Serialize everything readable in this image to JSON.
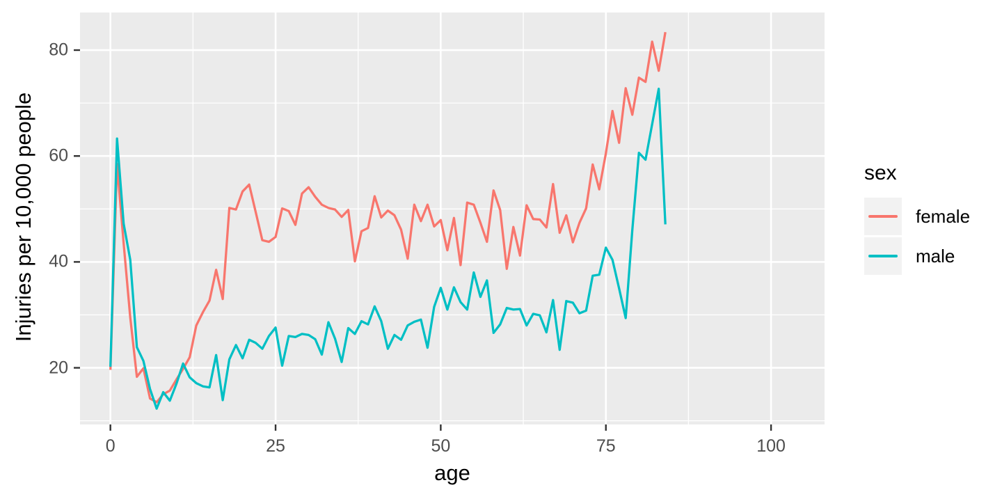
{
  "chart_data": {
    "type": "line",
    "title": "",
    "xlabel": "age",
    "ylabel": "Injuries per 10,000 people",
    "x_ticks": [
      0,
      25,
      50,
      75,
      100
    ],
    "x_minor_ticks": [
      12.5,
      37.5,
      62.5,
      87.5
    ],
    "y_ticks": [
      20,
      40,
      60,
      80
    ],
    "y_minor_ticks": [
      10,
      30,
      50,
      70
    ],
    "xlim": [
      -4.6,
      108.1
    ],
    "ylim": [
      9.3,
      87.1
    ],
    "grid": "major-and-minor",
    "panel_bg": "#ebebeb",
    "grid_color": "#ffffff",
    "tick_color": "#333333",
    "axis_text_color": "#4d4d4d",
    "legend": {
      "title": "sex",
      "position": "right",
      "entries": [
        {
          "label": "female",
          "color": "#F8766D"
        },
        {
          "label": "male",
          "color": "#00BFC4"
        }
      ]
    },
    "x": [
      0,
      1,
      2,
      3,
      4,
      5,
      6,
      7,
      8,
      9,
      10,
      11,
      12,
      13,
      14,
      15,
      16,
      17,
      18,
      19,
      20,
      21,
      22,
      23,
      24,
      25,
      26,
      27,
      28,
      29,
      30,
      31,
      32,
      33,
      34,
      35,
      36,
      37,
      38,
      39,
      40,
      41,
      42,
      43,
      44,
      45,
      46,
      47,
      48,
      49,
      50,
      51,
      52,
      53,
      54,
      55,
      56,
      57,
      58,
      59,
      60,
      61,
      62,
      63,
      64,
      65,
      66,
      67,
      68,
      69,
      70,
      71,
      72,
      73,
      74,
      75,
      76,
      77,
      78,
      79,
      80,
      81,
      82,
      83,
      84
    ],
    "series": [
      {
        "name": "female",
        "color": "#F8766D",
        "values": [
          19.6,
          58.5,
          43.5,
          29.5,
          18.3,
          19.9,
          14.2,
          13.5,
          15.0,
          15.7,
          17.8,
          19.8,
          22.0,
          28.0,
          30.5,
          32.7,
          38.5,
          33.0,
          50.2,
          49.9,
          53.3,
          54.6,
          49.4,
          44.1,
          43.8,
          44.7,
          50.1,
          49.6,
          47.0,
          52.9,
          54.1,
          52.3,
          50.8,
          50.2,
          49.9,
          48.5,
          49.8,
          40.1,
          45.8,
          46.4,
          52.4,
          48.4,
          49.7,
          48.8,
          46.1,
          40.6,
          50.8,
          47.7,
          50.8,
          46.7,
          47.9,
          42.2,
          48.3,
          39.4,
          51.2,
          50.8,
          47.4,
          43.8,
          53.5,
          49.8,
          38.7,
          46.6,
          41.2,
          50.7,
          48.1,
          48.0,
          46.5,
          54.7,
          45.5,
          48.8,
          43.7,
          47.4,
          50.1,
          58.4,
          53.7,
          60.5,
          68.5,
          62.5,
          72.8,
          67.8,
          74.8,
          74.0,
          81.6,
          76.1,
          83.4
        ]
      },
      {
        "name": "male",
        "color": "#00BFC4",
        "values": [
          20.2,
          63.3,
          47.2,
          40.4,
          23.9,
          21.3,
          16.0,
          12.3,
          15.4,
          13.8,
          17.0,
          20.8,
          18.2,
          17.1,
          16.5,
          16.3,
          22.4,
          13.9,
          21.6,
          24.3,
          21.8,
          25.3,
          24.7,
          23.6,
          26.0,
          27.6,
          20.4,
          26.0,
          25.8,
          26.4,
          26.2,
          25.4,
          22.5,
          28.6,
          25.5,
          21.1,
          27.5,
          26.4,
          28.8,
          28.2,
          31.6,
          28.8,
          23.6,
          26.2,
          25.3,
          28.0,
          28.7,
          29.1,
          23.8,
          31.5,
          35.1,
          31.0,
          35.2,
          32.4,
          31.0,
          38.0,
          33.4,
          36.5,
          26.6,
          28.2,
          31.3,
          31.0,
          31.1,
          28.0,
          30.2,
          29.9,
          26.7,
          32.8,
          23.4,
          32.6,
          32.3,
          30.3,
          30.8,
          37.4,
          37.6,
          42.7,
          40.4,
          35.0,
          29.4,
          46.0,
          60.6,
          59.3,
          66.0,
          72.7,
          47.1
        ]
      }
    ]
  }
}
